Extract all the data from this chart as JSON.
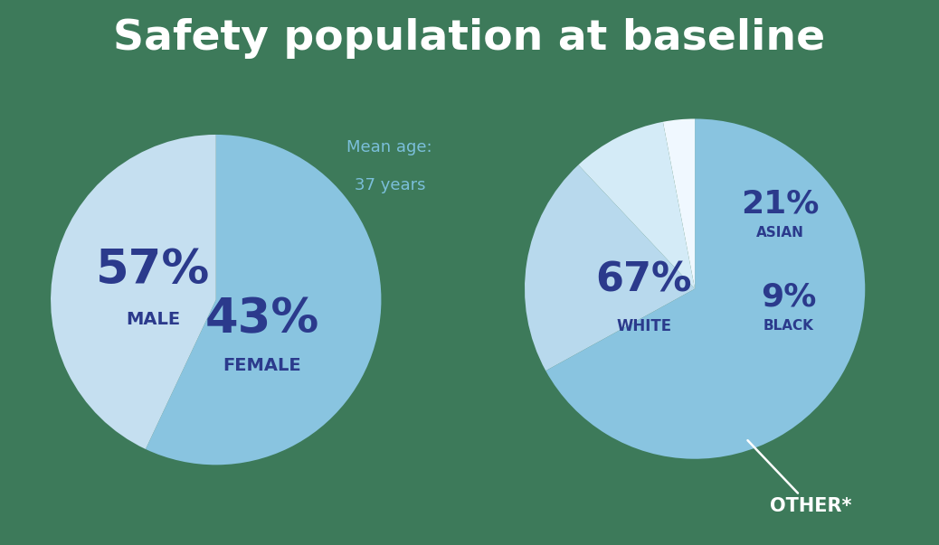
{
  "title": "Safety population at baseline",
  "title_color": "#ffffff",
  "title_fontsize": 34,
  "background_color": "#3d7a5a",
  "mean_age_line1": "Mean age:",
  "mean_age_line2": "37 years",
  "mean_age_color": "#7bbfda",
  "pie1_values": [
    57,
    43
  ],
  "pie1_labels": [
    "MALE",
    "FEMALE"
  ],
  "pie1_pcts": [
    "57%",
    "43%"
  ],
  "pie1_colors": [
    "#89c4e0",
    "#c5dff0"
  ],
  "pie1_text_color": "#2b3a8c",
  "pie1_startangle": 90,
  "pie2_values": [
    67,
    21,
    9,
    3
  ],
  "pie2_labels": [
    "WHITE",
    "ASIAN",
    "BLACK",
    "OTHER*"
  ],
  "pie2_pcts": [
    "67%",
    "21%",
    "9%"
  ],
  "pie2_colors": [
    "#89c4e0",
    "#b8d9ed",
    "#d4ebf7",
    "#f0f8ff"
  ],
  "pie2_text_color": "#2b3a8c",
  "pie2_startangle": 90,
  "other_label": "OTHER*",
  "other_label_color": "#ffffff",
  "pie1_pct_fontsize": 38,
  "pie1_label_fontsize": 14,
  "pie2_pct_fontsize": 32,
  "pie2_label_fontsize": 12,
  "pie2_sm_pct_fontsize": 26,
  "pie2_sm_label_fontsize": 11
}
